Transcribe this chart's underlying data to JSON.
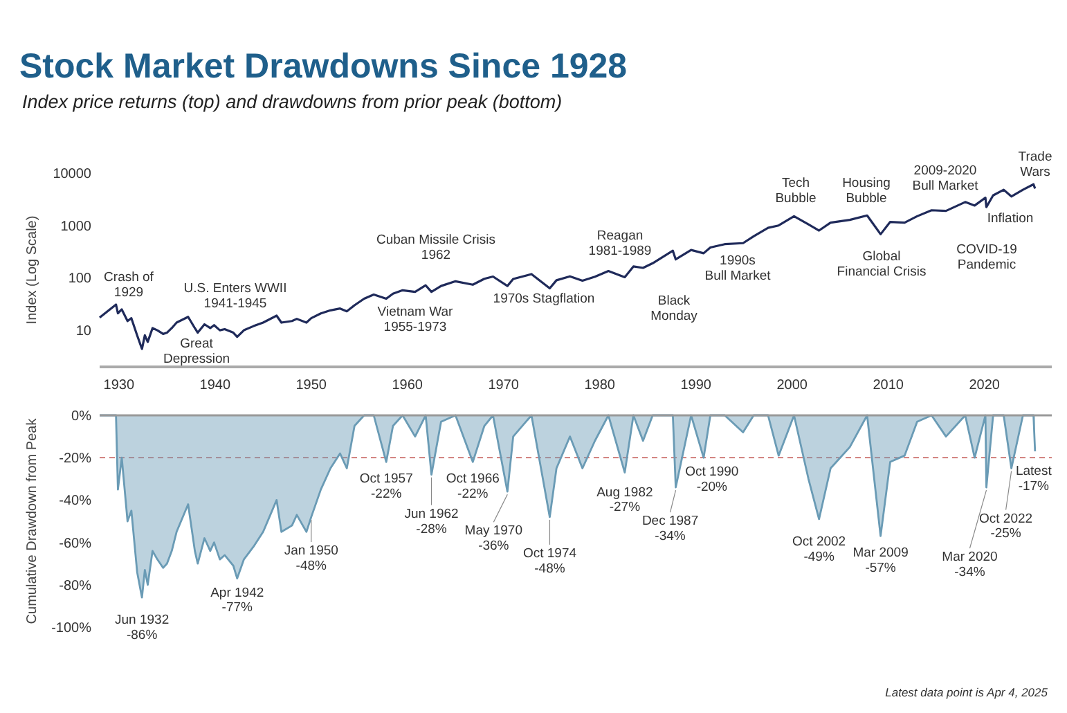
{
  "chart_data": [
    {
      "type": "line",
      "title": "Stock Market Drawdowns Since 1928",
      "subtitle": "Index price returns  (top) and drawdowns from prior peak (bottom)",
      "ylabel": "Index (Log Scale)",
      "log": true,
      "xlim": [
        1928,
        2027
      ],
      "xticks": [
        1930,
        1940,
        1950,
        1960,
        1970,
        1980,
        1990,
        2000,
        2010,
        2020
      ],
      "ylim": [
        2,
        10000
      ],
      "yticks": [
        10,
        100,
        1000,
        10000
      ],
      "x": [
        1928.0,
        1929.7,
        1929.9,
        1930.3,
        1930.9,
        1931.3,
        1931.9,
        1932.4,
        1932.7,
        1933.0,
        1933.5,
        1934.0,
        1934.6,
        1935.0,
        1935.5,
        1936.0,
        1937.2,
        1937.9,
        1938.2,
        1938.9,
        1939.5,
        1939.9,
        1940.5,
        1941.0,
        1941.9,
        1942.3,
        1943.0,
        1944.0,
        1945.0,
        1946.4,
        1946.9,
        1948.0,
        1948.5,
        1949.5,
        1950.0,
        1951.0,
        1952.0,
        1953.0,
        1953.7,
        1954.5,
        1955.5,
        1956.5,
        1957.8,
        1958.5,
        1959.5,
        1960.8,
        1961.9,
        1962.5,
        1963.5,
        1965.0,
        1966.8,
        1968.0,
        1968.9,
        1970.4,
        1971.0,
        1972.9,
        1974.8,
        1975.5,
        1976.9,
        1978.2,
        1979.5,
        1980.9,
        1982.6,
        1983.5,
        1984.5,
        1985.5,
        1987.6,
        1987.9,
        1989.5,
        1990.8,
        1991.5,
        1993.0,
        1994.9,
        1996.0,
        1997.5,
        1998.6,
        2000.2,
        2001.7,
        2002.8,
        2004.0,
        2006.0,
        2007.8,
        2009.2,
        2010.2,
        2011.7,
        2013.0,
        2014.5,
        2016.0,
        2018.0,
        2018.98,
        2020.1,
        2020.2,
        2020.9,
        2022.0,
        2022.8,
        2024.0,
        2025.1,
        2025.26
      ],
      "series": [
        {
          "color": "#1f2a5a",
          "values": [
            17.5,
            31,
            21,
            25,
            15,
            17,
            8,
            4.4,
            8,
            6,
            11,
            10,
            8.5,
            9,
            11,
            14,
            18,
            11,
            9,
            13,
            11,
            12.5,
            10,
            10.5,
            9,
            7.5,
            10,
            12,
            14,
            19,
            14,
            15,
            16.5,
            14,
            17,
            21,
            24,
            26,
            23,
            30,
            40,
            48,
            40,
            50,
            58,
            54,
            72,
            54,
            70,
            86,
            74,
            96,
            106,
            70,
            95,
            118,
            63,
            90,
            107,
            88,
            105,
            135,
            103,
            165,
            155,
            190,
            330,
            225,
            340,
            295,
            380,
            440,
            460,
            620,
            900,
            1000,
            1500,
            1050,
            800,
            1130,
            1280,
            1550,
            680,
            1170,
            1130,
            1500,
            1950,
            1900,
            2800,
            2400,
            3380,
            2240,
            3750,
            4800,
            3580,
            4800,
            6100,
            5070
          ]
        }
      ],
      "annotations": [
        "Crash of\n1929",
        "U.S. Enters WWII\n1941-1945",
        "Great\nDepression",
        "Cuban Missile Crisis\n1962",
        "Vietnam War\n1955-1973",
        "1970s Stagflation",
        "Reagan\n1981-1989",
        "Black\nMonday",
        "1990s\nBull Market",
        "Tech\nBubble",
        "Housing\nBubble",
        "2009-2020\nBull Market",
        "Trade\nWars",
        "Global\nFinancial Crisis",
        "Inflation",
        "COVID-19\nPandemic"
      ]
    },
    {
      "type": "area",
      "ylabel": "Cumulative Drawdown from Peak",
      "tick_labels": "y",
      "xlim": [
        1928,
        2027
      ],
      "ylim": [
        -100,
        0
      ],
      "yticks": [
        {
          "value": 0,
          "label": "0%"
        },
        {
          "value": -20,
          "label": "-20%"
        },
        {
          "value": -40,
          "label": "-40%"
        },
        {
          "value": -60,
          "label": "-60%"
        },
        {
          "value": -80,
          "label": "-80%"
        },
        {
          "value": -100,
          "label": "-100%"
        }
      ],
      "ref_lines": [
        {
          "axis": "y",
          "value": -20,
          "color": "#c0504d",
          "line_style": "dashed"
        }
      ],
      "x": [
        1928.0,
        1929.7,
        1929.9,
        1930.3,
        1930.9,
        1931.3,
        1931.9,
        1932.4,
        1932.7,
        1933.0,
        1933.5,
        1934.0,
        1934.6,
        1935.0,
        1935.5,
        1936.0,
        1937.2,
        1937.9,
        1938.2,
        1938.9,
        1939.5,
        1939.9,
        1940.5,
        1941.0,
        1941.9,
        1942.3,
        1943.0,
        1944.0,
        1945.0,
        1946.4,
        1946.9,
        1948.0,
        1948.5,
        1949.5,
        1950.0,
        1951.0,
        1952.0,
        1953.0,
        1953.7,
        1954.5,
        1955.5,
        1956.5,
        1957.8,
        1958.5,
        1959.5,
        1960.8,
        1961.9,
        1962.5,
        1963.5,
        1965.0,
        1966.8,
        1968.0,
        1968.9,
        1970.4,
        1971.0,
        1972.9,
        1974.8,
        1975.5,
        1976.9,
        1978.2,
        1979.5,
        1980.9,
        1982.6,
        1983.5,
        1984.5,
        1985.5,
        1987.6,
        1987.9,
        1989.5,
        1990.8,
        1991.5,
        1993.0,
        1994.9,
        1996.0,
        1997.5,
        1998.6,
        2000.2,
        2001.7,
        2002.8,
        2004.0,
        2006.0,
        2007.8,
        2009.2,
        2010.2,
        2011.7,
        2013.0,
        2014.5,
        2016.0,
        2018.0,
        2018.98,
        2020.1,
        2020.2,
        2020.9,
        2022.0,
        2022.8,
        2024.0,
        2025.1,
        2025.26
      ],
      "series": [
        {
          "color": "#6a9bb5",
          "values": [
            0,
            0,
            -35,
            -20,
            -50,
            -45,
            -74,
            -86,
            -73,
            -80,
            -64,
            -68,
            -72,
            -70,
            -64,
            -55,
            -42,
            -64,
            -70,
            -58,
            -64,
            -60,
            -68,
            -66,
            -71,
            -77,
            -68,
            -62,
            -55,
            -40,
            -55,
            -52,
            -47,
            -55,
            -48,
            -35,
            -25,
            -18,
            -25,
            -5,
            0,
            0,
            -22,
            -5,
            0,
            -10,
            0,
            -28,
            -3,
            0,
            -22,
            -5,
            0,
            -36,
            -10,
            0,
            -48,
            -25,
            -10,
            -25,
            -12,
            0,
            -27,
            0,
            -12,
            0,
            0,
            -34,
            0,
            -20,
            0,
            0,
            -8,
            0,
            0,
            -19,
            0,
            -30,
            -49,
            -25,
            -15,
            0,
            -57,
            -22,
            -19,
            -3,
            0,
            -10,
            0,
            -20,
            0,
            -34,
            0,
            0,
            -25,
            0,
            0,
            -17
          ]
        }
      ],
      "annotations": [
        {
          "text": "Jun 1932\n-86%",
          "x": 1932.4,
          "y": -86
        },
        {
          "text": "Apr 1942\n-77%",
          "x": 1942.3,
          "y": -77
        },
        {
          "text": "Jan 1950\n-48%",
          "x": 1950.0,
          "y": -48
        },
        {
          "text": "Oct 1957\n-22%",
          "x": 1957.8,
          "y": -22
        },
        {
          "text": "Jun 1962\n-28%",
          "x": 1962.5,
          "y": -28
        },
        {
          "text": "Oct 1966\n-22%",
          "x": 1966.8,
          "y": -22
        },
        {
          "text": "May 1970\n-36%",
          "x": 1970.4,
          "y": -36
        },
        {
          "text": "Oct 1974\n-48%",
          "x": 1974.8,
          "y": -48
        },
        {
          "text": "Aug 1982\n-27%",
          "x": 1982.6,
          "y": -27
        },
        {
          "text": "Dec 1987\n-34%",
          "x": 1987.9,
          "y": -34
        },
        {
          "text": "Oct 1990\n-20%",
          "x": 1990.8,
          "y": -20
        },
        {
          "text": "Oct 2002\n-49%",
          "x": 2002.8,
          "y": -49
        },
        {
          "text": "Mar 2009\n-57%",
          "x": 2009.2,
          "y": -57
        },
        {
          "text": "Mar 2020\n-34%",
          "x": 2020.2,
          "y": -34
        },
        {
          "text": "Oct 2022\n-25%",
          "x": 2022.8,
          "y": -25
        },
        {
          "text": "Latest\n-17%",
          "x": 2025.26,
          "y": -17
        },
        "Latest data point is Apr 4, 2025"
      ]
    }
  ]
}
